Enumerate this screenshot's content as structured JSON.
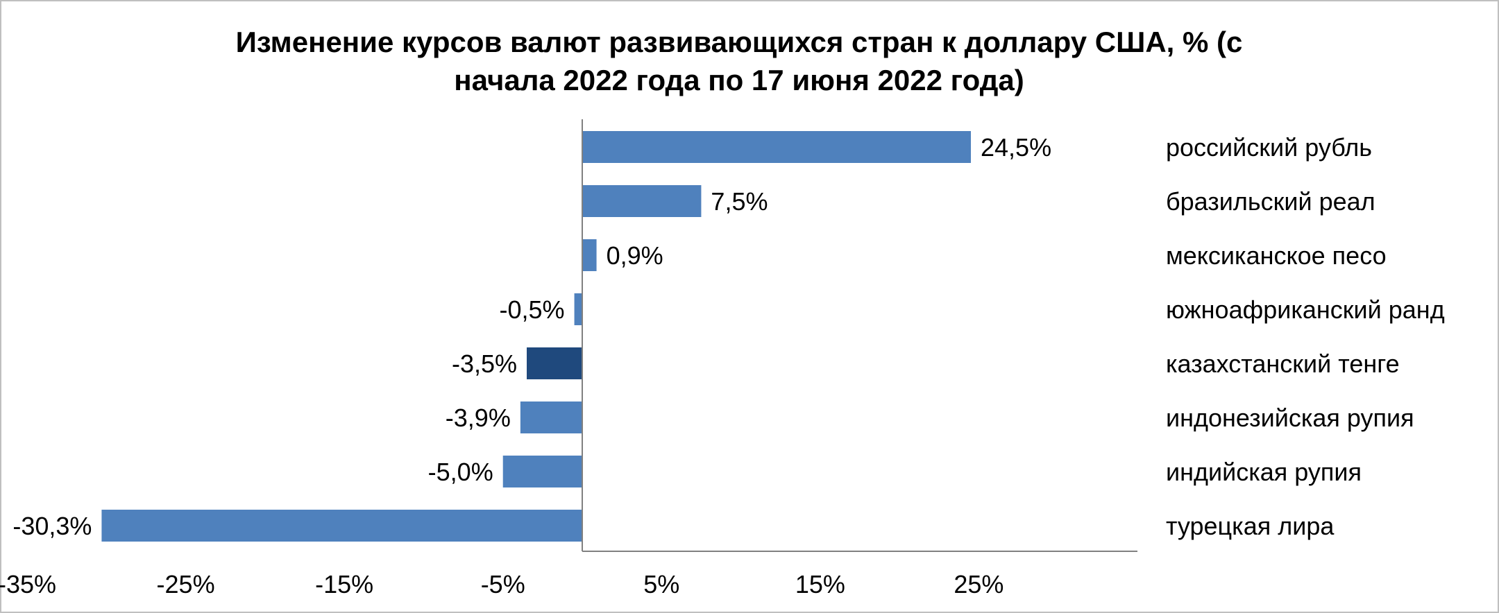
{
  "chart_data": {
    "type": "bar",
    "orientation": "horizontal",
    "title": "Изменение курсов валют развивающихся стран к доллару США, % (с начала 2022 года по 17 июня 2022 года)",
    "title_lines": [
      "Изменение курсов валют развивающихся стран к доллару США, % (с",
      "начала 2022 года по 17 июня 2022 года)"
    ],
    "xlabel": "",
    "ylabel": "",
    "xlim": [
      -35,
      35
    ],
    "xticks": [
      -35,
      -25,
      -15,
      -5,
      5,
      15,
      25
    ],
    "tick_labels": [
      "-35%",
      "-25%",
      "-15%",
      "-5%",
      "5%",
      "15%",
      "25%"
    ],
    "grid": false,
    "legend": "none",
    "categories": [
      "российский рубль",
      "бразильский реал",
      "мексиканское песо",
      "южноафриканский ранд",
      "казахстанский тенге",
      "индонезийская рупия",
      "индийская рупия",
      "турецкая лира"
    ],
    "values": [
      24.5,
      7.5,
      0.9,
      -0.5,
      -3.5,
      -3.9,
      -5.0,
      -30.3
    ],
    "value_labels": [
      "24,5%",
      "7,5%",
      "0,9%",
      "-0,5%",
      "-3,5%",
      "-3,9%",
      "-5,0%",
      "-30,3%"
    ],
    "bar_color": "#4f81bd",
    "highlight_color": "#1f497d",
    "highlight_category": "казахстанский тенге"
  }
}
